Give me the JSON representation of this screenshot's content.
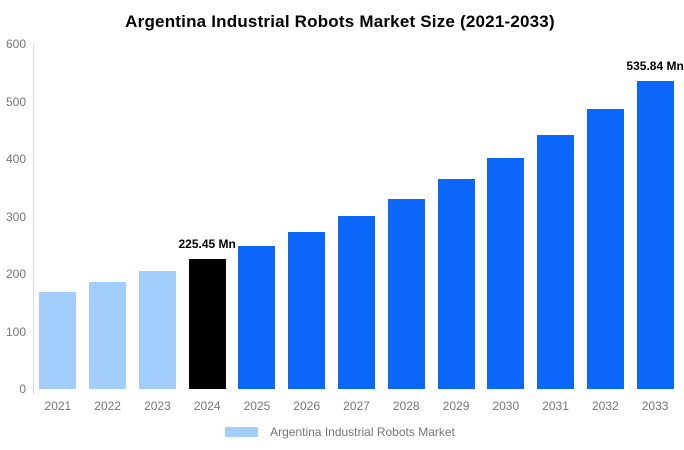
{
  "chart_data": {
    "type": "bar",
    "title": "Argentina Industrial Robots Market Size (2021-2033)",
    "categories": [
      "2021",
      "2022",
      "2023",
      "2024",
      "2025",
      "2026",
      "2027",
      "2028",
      "2029",
      "2030",
      "2031",
      "2032",
      "2033"
    ],
    "values": [
      168.9,
      186.0,
      204.8,
      225.45,
      248.2,
      273.3,
      300.9,
      331.2,
      364.7,
      401.5,
      442.0,
      486.7,
      535.84
    ],
    "bar_colors": [
      "#a3cdfa",
      "#a3cdfa",
      "#a3cdfa",
      "#000000",
      "#0a67fa",
      "#0a67fa",
      "#0a67fa",
      "#0a67fa",
      "#0a67fa",
      "#0a67fa",
      "#0a67fa",
      "#0a67fa",
      "#0a67fa"
    ],
    "xlabel": "",
    "ylabel": "",
    "ylim": [
      0,
      600
    ],
    "y_ticks": [
      0,
      100,
      200,
      300,
      400,
      500,
      600
    ],
    "grid": false,
    "annotations": [
      {
        "category": "2024",
        "text": "225.45 Mn"
      },
      {
        "category": "2033",
        "text": "535.84 Mn"
      }
    ],
    "legend": {
      "position": "bottom",
      "label": "Argentina Industrial Robots Market",
      "swatch_color": "#a3cdfa"
    },
    "colors": {
      "past_bar": "#a3cdfa",
      "highlight_bar": "#000000",
      "forecast_bar": "#0a67fa",
      "tick_text": "#757575",
      "axis_line": "#d9d9d9",
      "background": "#ffffff"
    }
  }
}
